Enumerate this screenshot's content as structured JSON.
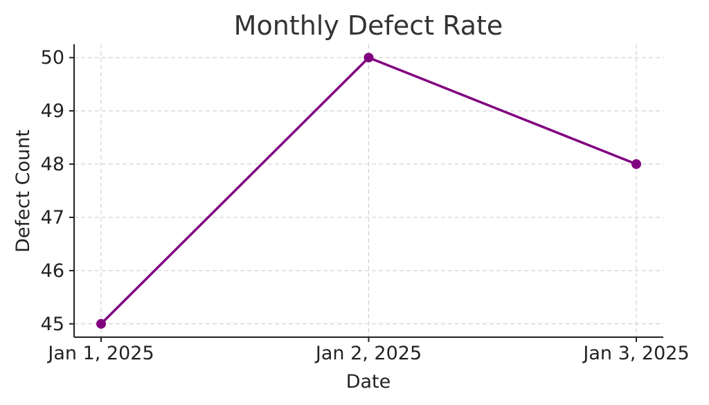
{
  "chart_data": {
    "type": "line",
    "title": "Monthly Defect Rate",
    "xlabel": "Date",
    "ylabel": "Defect Count",
    "categories": [
      "Jan 1, 2025",
      "Jan 2, 2025",
      "Jan 3, 2025"
    ],
    "series": [
      {
        "values": [
          45,
          50,
          48
        ],
        "color": "#800080"
      }
    ],
    "yticks": [
      45,
      46,
      47,
      48,
      49,
      50
    ],
    "ylim": [
      44.75,
      50.25
    ],
    "grid": true,
    "marker": "circle"
  }
}
